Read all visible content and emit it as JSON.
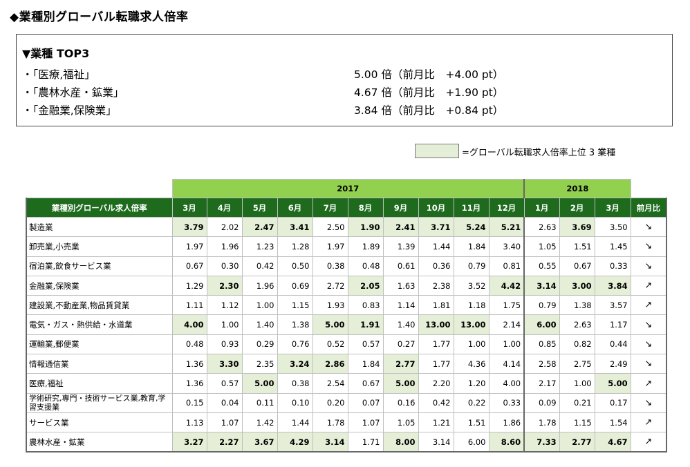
{
  "page": {
    "title": "◆業種別グローバル転職求人倍率"
  },
  "top3": {
    "heading": "▼業種 TOP3",
    "items": [
      {
        "name": "・「医療,福祉」",
        "value": "5.00 倍（前月比　+4.00 pt）"
      },
      {
        "name": "・「農林水産・鉱業」",
        "value": "4.67 倍（前月比　+1.90 pt）"
      },
      {
        "name": "・「金融業,保険業」",
        "value": "3.84 倍（前月比　+0.84 pt）"
      }
    ]
  },
  "legend": {
    "text": "=グローバル転職求人倍率上位 3 業種",
    "swatch_color": "#e5eed6"
  },
  "table": {
    "years": [
      {
        "label": "2017",
        "span": 10
      },
      {
        "label": "2018",
        "span": 3
      }
    ],
    "header_label": "業種別グローバル求人倍率",
    "months": [
      "3月",
      "4月",
      "5月",
      "6月",
      "7月",
      "8月",
      "9月",
      "10月",
      "11月",
      "12月",
      "1月",
      "2月",
      "3月"
    ],
    "change_label": "前月比",
    "rows": [
      {
        "industry": "製造業",
        "values": [
          "3.79",
          "2.02",
          "2.47",
          "3.41",
          "2.50",
          "1.90",
          "2.41",
          "3.71",
          "5.24",
          "5.21",
          "2.63",
          "3.69",
          "3.50"
        ],
        "highlight": [
          0,
          2,
          3,
          5,
          6,
          7,
          8,
          9,
          11
        ],
        "change": "↘"
      },
      {
        "industry": "卸売業,小売業",
        "values": [
          "1.97",
          "1.96",
          "1.23",
          "1.28",
          "1.97",
          "1.89",
          "1.39",
          "1.44",
          "1.84",
          "3.40",
          "1.05",
          "1.51",
          "1.45"
        ],
        "highlight": [],
        "change": "↘"
      },
      {
        "industry": "宿泊業,飲食サービス業",
        "values": [
          "0.67",
          "0.30",
          "0.42",
          "0.50",
          "0.38",
          "0.48",
          "0.61",
          "0.36",
          "0.79",
          "0.81",
          "0.55",
          "0.67",
          "0.33"
        ],
        "highlight": [],
        "change": "↘"
      },
      {
        "industry": "金融業,保険業",
        "values": [
          "1.29",
          "2.30",
          "1.96",
          "0.69",
          "2.72",
          "2.05",
          "1.63",
          "2.38",
          "3.52",
          "4.42",
          "3.14",
          "3.00",
          "3.84"
        ],
        "highlight": [
          1,
          5,
          9,
          10,
          11,
          12
        ],
        "change": "↗"
      },
      {
        "industry": "建設業,不動産業,物品賃貸業",
        "values": [
          "1.11",
          "1.12",
          "1.00",
          "1.15",
          "1.93",
          "0.83",
          "1.14",
          "1.81",
          "1.18",
          "1.75",
          "0.79",
          "1.38",
          "3.57"
        ],
        "highlight": [],
        "change": "↗"
      },
      {
        "industry": "電気・ガス・熱供給・水道業",
        "values": [
          "4.00",
          "1.00",
          "1.40",
          "1.38",
          "5.00",
          "1.91",
          "1.40",
          "13.00",
          "13.00",
          "2.14",
          "6.00",
          "2.63",
          "1.17"
        ],
        "highlight": [
          0,
          4,
          5,
          7,
          8,
          10
        ],
        "change": "↘"
      },
      {
        "industry": "運輸業,郵便業",
        "values": [
          "0.48",
          "0.93",
          "0.29",
          "0.76",
          "0.52",
          "0.57",
          "0.27",
          "1.77",
          "1.00",
          "1.00",
          "0.85",
          "0.82",
          "0.44"
        ],
        "highlight": [],
        "change": "↘"
      },
      {
        "industry": "情報通信業",
        "values": [
          "1.36",
          "3.30",
          "2.35",
          "3.24",
          "2.86",
          "1.84",
          "2.77",
          "1.77",
          "4.36",
          "4.14",
          "2.58",
          "2.75",
          "2.49"
        ],
        "highlight": [
          1,
          3,
          4,
          6
        ],
        "change": "↘"
      },
      {
        "industry": "医療,福祉",
        "values": [
          "1.36",
          "0.57",
          "5.00",
          "0.38",
          "2.54",
          "0.67",
          "5.00",
          "2.20",
          "1.20",
          "4.00",
          "2.17",
          "1.00",
          "5.00"
        ],
        "highlight": [
          2,
          6,
          12
        ],
        "change": "↗"
      },
      {
        "industry": "学術研究,専門・技術サービス業,教育,学習支援業",
        "values": [
          "0.15",
          "0.04",
          "0.11",
          "0.10",
          "0.20",
          "0.07",
          "0.16",
          "0.42",
          "0.22",
          "0.33",
          "0.09",
          "0.21",
          "0.17"
        ],
        "highlight": [],
        "change": "↘",
        "two_line": true
      },
      {
        "industry": "サービス業",
        "values": [
          "1.13",
          "1.07",
          "1.42",
          "1.44",
          "1.78",
          "1.07",
          "1.05",
          "1.21",
          "1.51",
          "1.86",
          "1.78",
          "1.15",
          "1.54"
        ],
        "highlight": [],
        "change": "↗"
      },
      {
        "industry": "農林水産・鉱業",
        "values": [
          "3.27",
          "2.27",
          "3.67",
          "4.29",
          "3.14",
          "1.71",
          "8.00",
          "3.14",
          "6.00",
          "8.60",
          "7.33",
          "2.77",
          "4.67"
        ],
        "highlight": [
          0,
          1,
          2,
          3,
          4,
          6,
          9,
          10,
          11,
          12
        ],
        "change": "↗"
      }
    ]
  }
}
